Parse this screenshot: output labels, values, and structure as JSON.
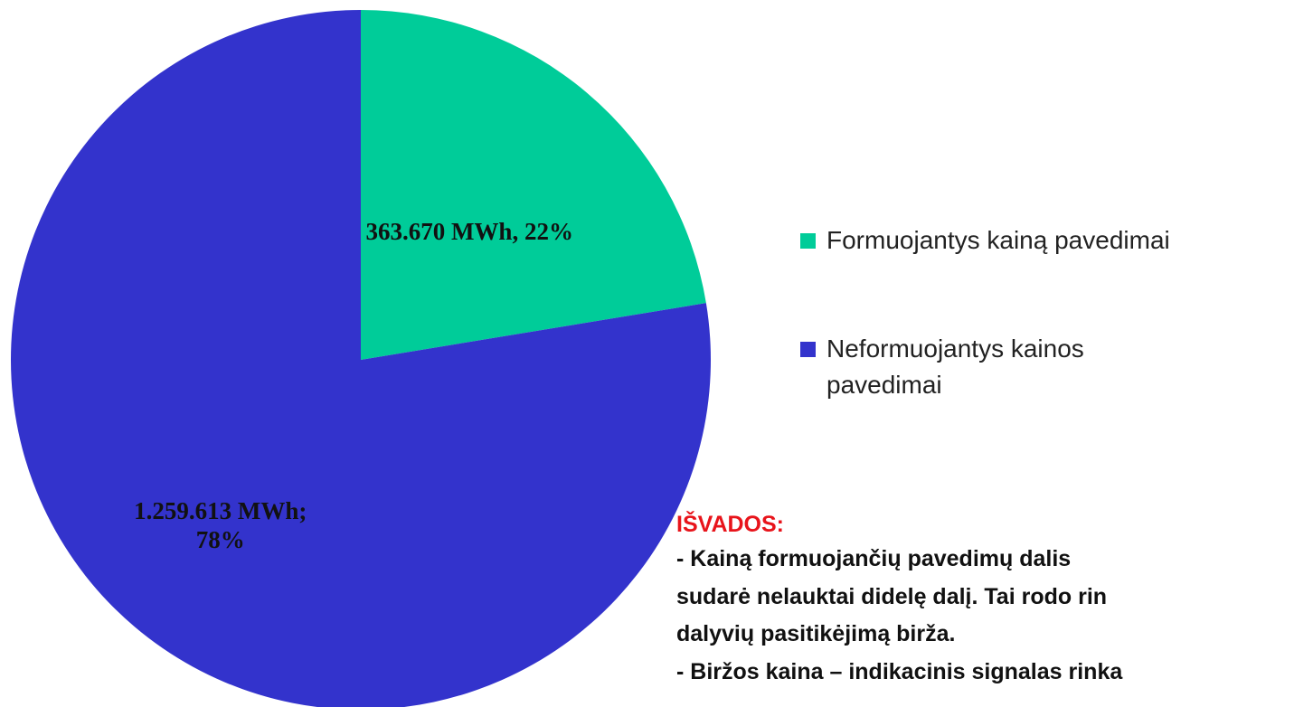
{
  "chart_data": {
    "type": "pie",
    "categories": [
      "Formuojantys kainą pavedimai",
      "Neformuojantys kainos pavedimai"
    ],
    "values": [
      363670,
      1259613
    ],
    "value_labels": [
      "363.670 MWh, 22%",
      "1.259.613 MWh; 78%"
    ],
    "colors": [
      "#00cc99",
      "#3333cc"
    ],
    "legend": "right"
  },
  "notes": {
    "heading": "IŠVADOS:",
    "lines": [
      "- Kainą formuojančių pavedimų dalis",
      "sudarė nelauktai didelę dalį. Tai rodo rin",
      "dalyvių pasitikėjimą birža.",
      "- Biržos kaina – indikacinis signalas rinka"
    ]
  }
}
